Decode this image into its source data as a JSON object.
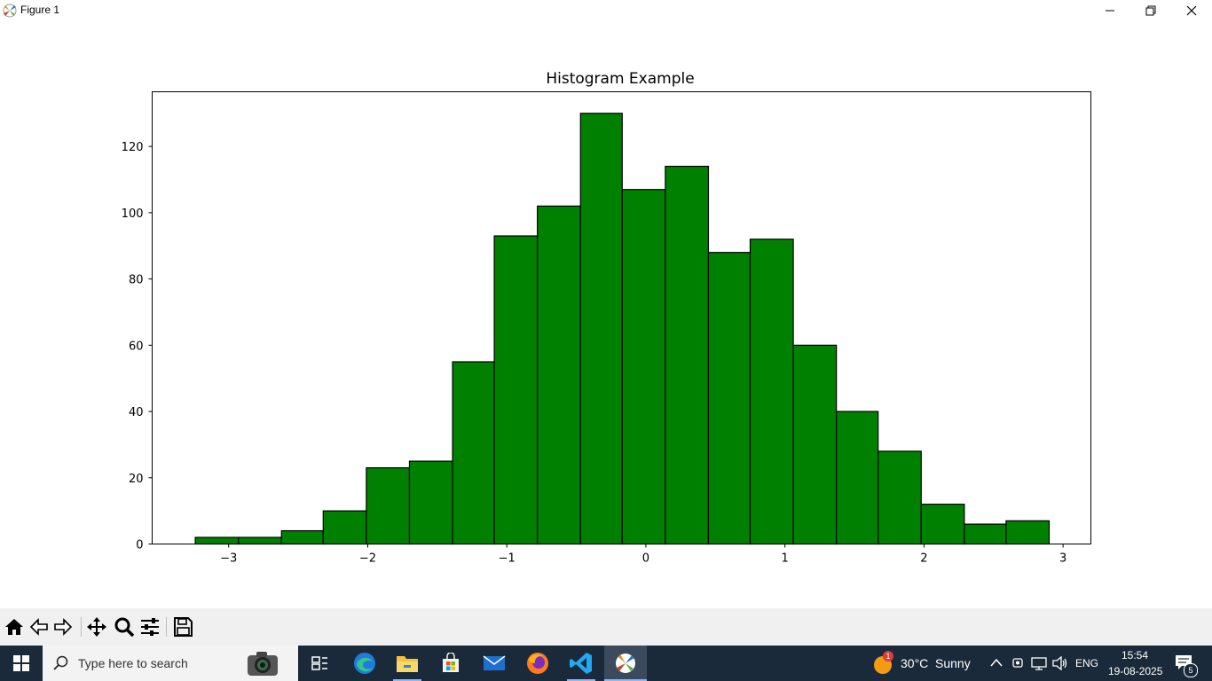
{
  "window": {
    "title": "Figure 1"
  },
  "chart_data": {
    "type": "bar",
    "title": "Histogram Example",
    "xlabel": "",
    "ylabel": "",
    "bins": [
      [
        -3.24,
        -2.93,
        2
      ],
      [
        -2.93,
        -2.62,
        2
      ],
      [
        -2.62,
        -2.32,
        4
      ],
      [
        -2.32,
        -2.01,
        10
      ],
      [
        -2.01,
        -1.7,
        23
      ],
      [
        -1.7,
        -1.39,
        25
      ],
      [
        -1.39,
        -1.09,
        55
      ],
      [
        -1.09,
        -0.78,
        93
      ],
      [
        -0.78,
        -0.47,
        102
      ],
      [
        -0.47,
        -0.17,
        130
      ],
      [
        -0.17,
        0.14,
        107
      ],
      [
        0.14,
        0.45,
        114
      ],
      [
        0.45,
        0.75,
        88
      ],
      [
        0.75,
        1.06,
        92
      ],
      [
        1.06,
        1.37,
        60
      ],
      [
        1.37,
        1.67,
        40
      ],
      [
        1.67,
        1.98,
        28
      ],
      [
        1.98,
        2.29,
        12
      ],
      [
        2.29,
        2.59,
        6
      ],
      [
        2.59,
        2.9,
        7
      ]
    ],
    "xlim": [
      -3.55,
      3.2
    ],
    "ylim": [
      0,
      136.5
    ],
    "xticks": [
      -3,
      -2,
      -1,
      0,
      1,
      2,
      3
    ],
    "xtick_labels": [
      "−3",
      "−2",
      "−1",
      "0",
      "1",
      "2",
      "3"
    ],
    "yticks": [
      0,
      20,
      40,
      60,
      80,
      100,
      120
    ],
    "ytick_labels": [
      "0",
      "20",
      "40",
      "60",
      "80",
      "100",
      "120"
    ],
    "bar_color": "#008000",
    "edge_color": "#000000",
    "grid": false
  },
  "toolbar": {
    "buttons": [
      "home-icon",
      "back-icon",
      "forward-icon",
      "pan-icon",
      "zoom-icon",
      "configure-icon",
      "save-icon"
    ]
  },
  "taskbar": {
    "search_placeholder": "Type here to search",
    "weather_temp": "30°C",
    "weather_desc": "Sunny",
    "weather_badge": "1",
    "language": "ENG",
    "time": "15:54",
    "date": "19-08-2025",
    "notification_count": "5"
  }
}
